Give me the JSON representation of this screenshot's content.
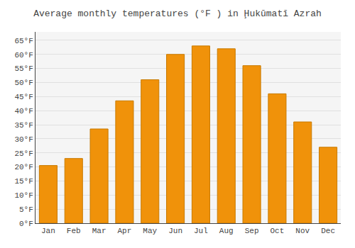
{
  "chart_data": {
    "type": "bar",
    "title": "Average monthly temperatures (°F ) in Ḩukūmatī Azrah",
    "categories": [
      "Jan",
      "Feb",
      "Mar",
      "Apr",
      "May",
      "Jun",
      "Jul",
      "Aug",
      "Sep",
      "Oct",
      "Nov",
      "Dec"
    ],
    "values": [
      20.5,
      23.0,
      33.5,
      43.5,
      51.0,
      60.0,
      63.0,
      62.0,
      56.0,
      46.0,
      36.0,
      27.0
    ],
    "color": "#F0920A",
    "ylim": [
      0,
      68
    ],
    "yticks": [
      {
        "value": 0,
        "label": "0°F"
      },
      {
        "value": 5,
        "label": "5°F"
      },
      {
        "value": 10,
        "label": "10°F"
      },
      {
        "value": 15,
        "label": "15°F"
      },
      {
        "value": 20,
        "label": "20°F"
      },
      {
        "value": 25,
        "label": "25°F"
      },
      {
        "value": 30,
        "label": "30°F"
      },
      {
        "value": 35,
        "label": "35°F"
      },
      {
        "value": 40,
        "label": "40°F"
      },
      {
        "value": 45,
        "label": "45°F"
      },
      {
        "value": 50,
        "label": "50°F"
      },
      {
        "value": 55,
        "label": "55°F"
      },
      {
        "value": 60,
        "label": "60°F"
      },
      {
        "value": 65,
        "label": "65°F"
      }
    ],
    "grid": true
  }
}
